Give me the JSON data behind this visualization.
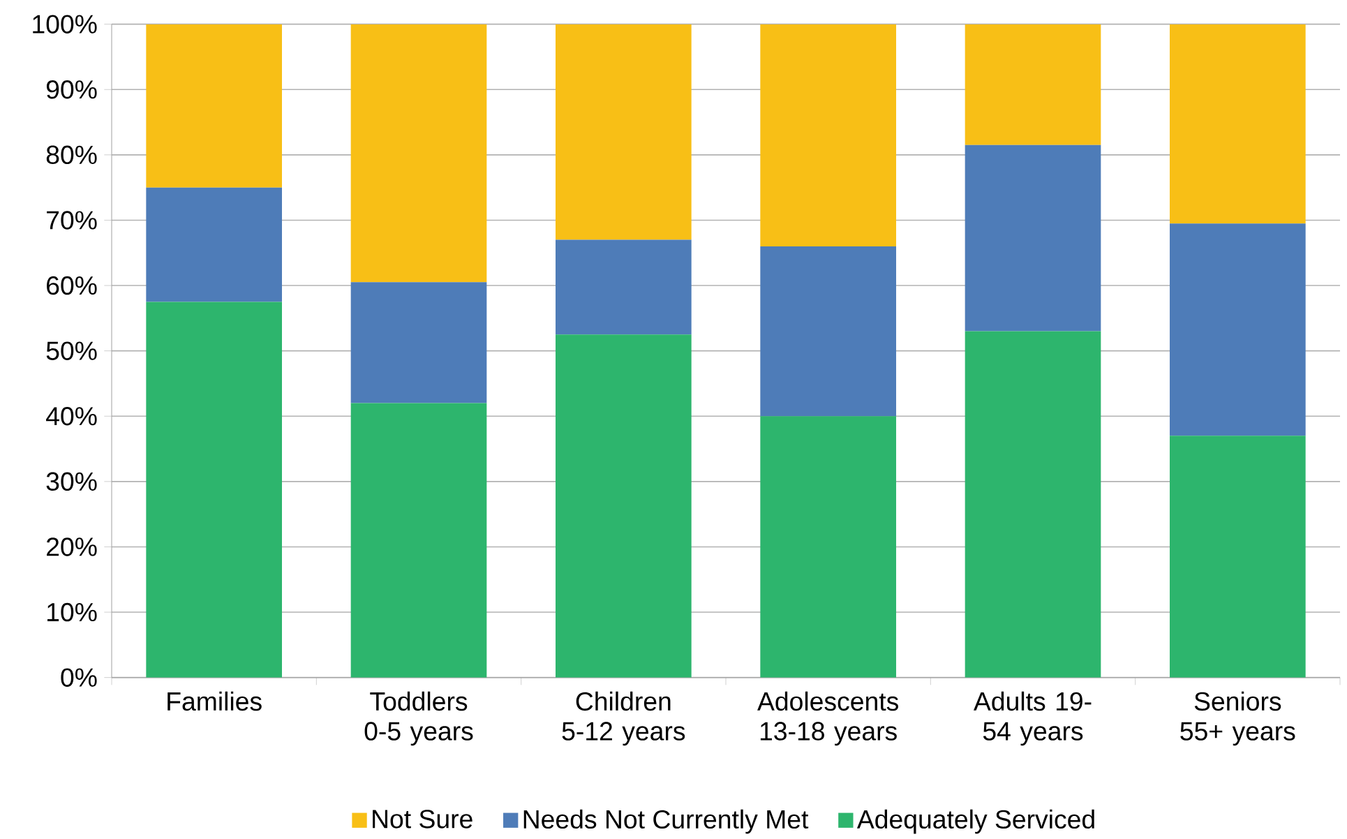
{
  "chart_data": {
    "type": "bar",
    "stacked": true,
    "categories": [
      "Families",
      "Toddlers 0-5 years",
      "Children 5-12 years",
      "Adolescents 13-18 years",
      "Adults 19-54 years",
      "Seniors 55+ years"
    ],
    "series": [
      {
        "name": "Adequately Serviced",
        "color": "#2db56d",
        "values": [
          57.5,
          42,
          52.5,
          40,
          53,
          37
        ]
      },
      {
        "name": "Needs Not Currently Met",
        "color": "#4e7cb8",
        "values": [
          17.5,
          18.5,
          14.5,
          26,
          28.5,
          32.5
        ]
      },
      {
        "name": "Not Sure",
        "color": "#f8bf16",
        "values": [
          25,
          39.5,
          33,
          34,
          18.5,
          30.5
        ]
      }
    ],
    "ylim": [
      0,
      100
    ],
    "yticks": [
      {
        "value": 0,
        "label": "0%"
      },
      {
        "value": 10,
        "label": "10%"
      },
      {
        "value": 20,
        "label": "20%"
      },
      {
        "value": 30,
        "label": "30%"
      },
      {
        "value": 40,
        "label": "40%"
      },
      {
        "value": 50,
        "label": "50%"
      },
      {
        "value": 60,
        "label": "60%"
      },
      {
        "value": 70,
        "label": "70%"
      },
      {
        "value": 80,
        "label": "80%"
      },
      {
        "value": 90,
        "label": "90%"
      },
      {
        "value": 100,
        "label": "100%"
      }
    ],
    "grid": "y",
    "legend": "bottom"
  }
}
